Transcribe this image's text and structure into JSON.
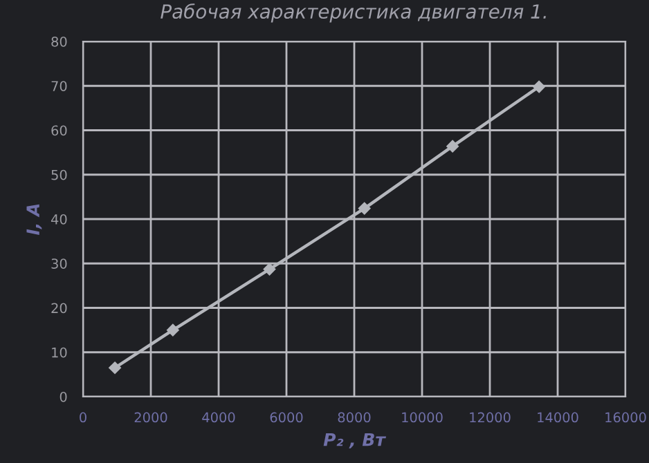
{
  "chart_data": {
    "type": "line",
    "title": "Рабочая характеристика двигателя 1.",
    "xlabel": "P₂ , Вт",
    "ylabel": "I, A",
    "x": [
      940,
      2650,
      5500,
      8300,
      10900,
      13450
    ],
    "series": [
      {
        "color": "#b4b6bc",
        "values": [
          6.5,
          15,
          28.7,
          42.4,
          56.4,
          69.8
        ]
      }
    ],
    "xlim": [
      0,
      16000
    ],
    "xticks": [
      0,
      2000,
      4000,
      6000,
      8000,
      10000,
      12000,
      14000,
      16000
    ],
    "ylim": [
      0,
      80
    ],
    "yticks": [
      0,
      10,
      20,
      30,
      40,
      50,
      60,
      70,
      80
    ],
    "grid": true,
    "marker": "diamond",
    "line_style": "solid"
  }
}
